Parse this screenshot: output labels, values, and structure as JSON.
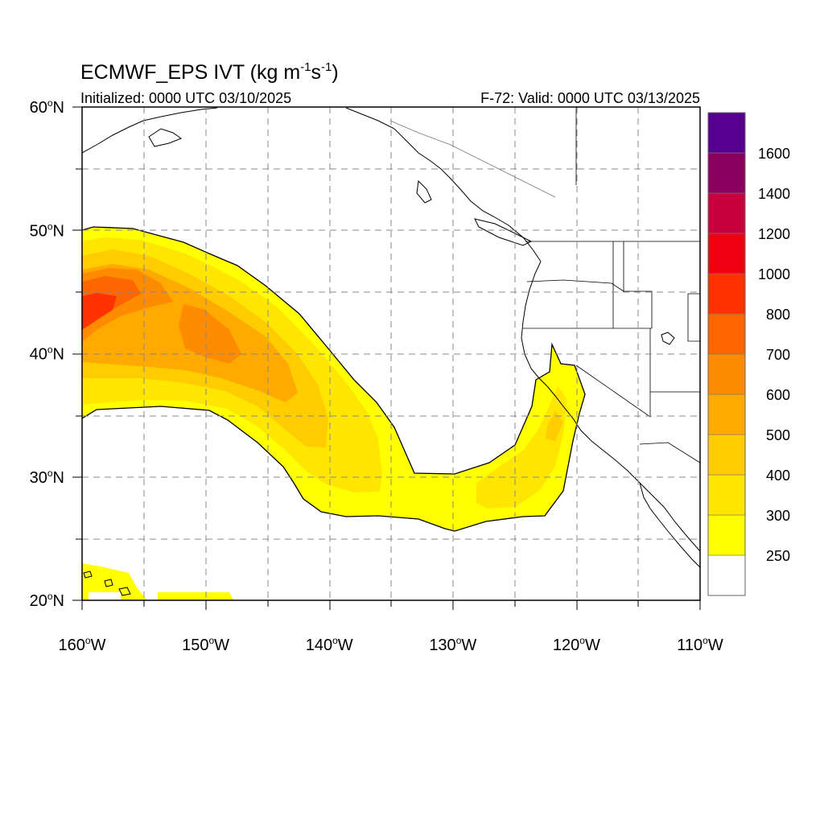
{
  "title": {
    "model": "ECMWF_EPS IVT (kg m",
    "sup1": "-1",
    "mid": "s",
    "sup2": "-1",
    "end": ")"
  },
  "init_text": "Initialized: 0000 UTC 03/10/2025",
  "valid_text": "F-72: Valid: 0000 UTC 03/13/2025",
  "lat_ticks": [
    {
      "value": 60,
      "deg": "60",
      "hemi": "N"
    },
    {
      "value": 50,
      "deg": "50",
      "hemi": "N"
    },
    {
      "value": 40,
      "deg": "40",
      "hemi": "N"
    },
    {
      "value": 30,
      "deg": "30",
      "hemi": "N"
    },
    {
      "value": 20,
      "deg": "20",
      "hemi": "N"
    }
  ],
  "lon_ticks": [
    {
      "value": -160,
      "deg": "160",
      "hemi": "W"
    },
    {
      "value": -150,
      "deg": "150",
      "hemi": "W"
    },
    {
      "value": -140,
      "deg": "140",
      "hemi": "W"
    },
    {
      "value": -130,
      "deg": "130",
      "hemi": "W"
    },
    {
      "value": -120,
      "deg": "120",
      "hemi": "W"
    },
    {
      "value": -110,
      "deg": "110",
      "hemi": "W"
    }
  ],
  "colorbar": {
    "colors": [
      "#ffffff",
      "#ffff00",
      "#ffe600",
      "#ffcc00",
      "#ffaa00",
      "#ff8c00",
      "#ff6600",
      "#ff3300",
      "#ee0011",
      "#c8003c",
      "#8b005e",
      "#55008f"
    ],
    "labels": [
      "250",
      "300",
      "400",
      "500",
      "600",
      "700",
      "800",
      "1000",
      "1200",
      "1400",
      "1600"
    ]
  },
  "legend_colors": {
    "ivt_250": "#ffff00",
    "ivt_300": "#ffe600",
    "ivt_400": "#ffcc00",
    "ivt_500": "#ffaa00",
    "ivt_600": "#ff8c00",
    "ivt_700": "#ff6600",
    "ivt_800": "#ff3300"
  },
  "map_extent": {
    "lon": [
      -160,
      -110
    ],
    "lat": [
      20,
      60
    ]
  }
}
